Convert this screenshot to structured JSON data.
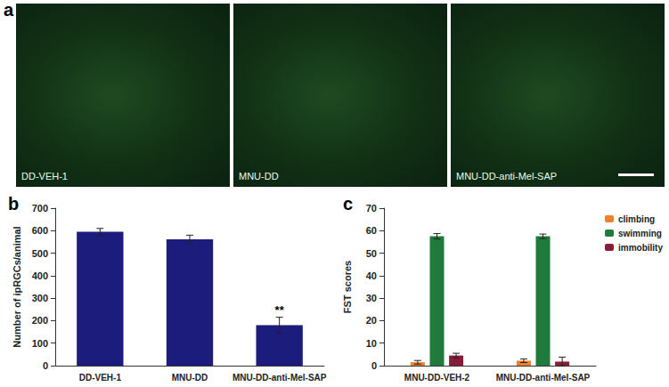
{
  "figure_label": "a",
  "images": [
    {
      "label": "DD-VEH-1"
    },
    {
      "label": "MNU-DD"
    },
    {
      "label": "MNU-DD-anti-Mel-SAP"
    }
  ],
  "chart_data": [
    {
      "type": "bar",
      "title": "b",
      "y_label": "Number of ipRGCs/animal",
      "categories": [
        "DD-VEH-1",
        "MNU-DD",
        "MNU-DD-anti-Mel-SAP"
      ],
      "values": [
        595,
        562,
        180
      ],
      "errors": [
        15,
        18,
        35
      ],
      "color": "#1c1c7c",
      "annotations": [
        {
          "text": "**",
          "category": "MNU-DD-anti-Mel-SAP"
        }
      ],
      "ylim": [
        0,
        700
      ],
      "yticks": [
        0,
        100,
        200,
        300,
        400,
        500,
        600,
        700
      ],
      "grid": false
    },
    {
      "type": "bar",
      "title": "c",
      "y_label": "FST scores",
      "categories": [
        "MNU-DD-VEH-2",
        "MNU-DD-anti-Mel-SAP"
      ],
      "series": [
        {
          "name": "climbing",
          "color": "#f07f2a",
          "values": [
            1.5,
            2.2
          ],
          "errors": [
            0.8,
            0.8
          ]
        },
        {
          "name": "swimming",
          "color": "#1e7b3c",
          "values": [
            57.5,
            57.5
          ],
          "errors": [
            1.2,
            1.0
          ]
        },
        {
          "name": "immobility",
          "color": "#8a1c3a",
          "values": [
            4.5,
            1.8
          ],
          "errors": [
            1.0,
            2.0
          ]
        }
      ],
      "legend": "upper right",
      "ylim": [
        0,
        70
      ],
      "yticks": [
        0,
        10,
        20,
        30,
        40,
        50,
        60,
        70
      ],
      "grid": false
    }
  ]
}
